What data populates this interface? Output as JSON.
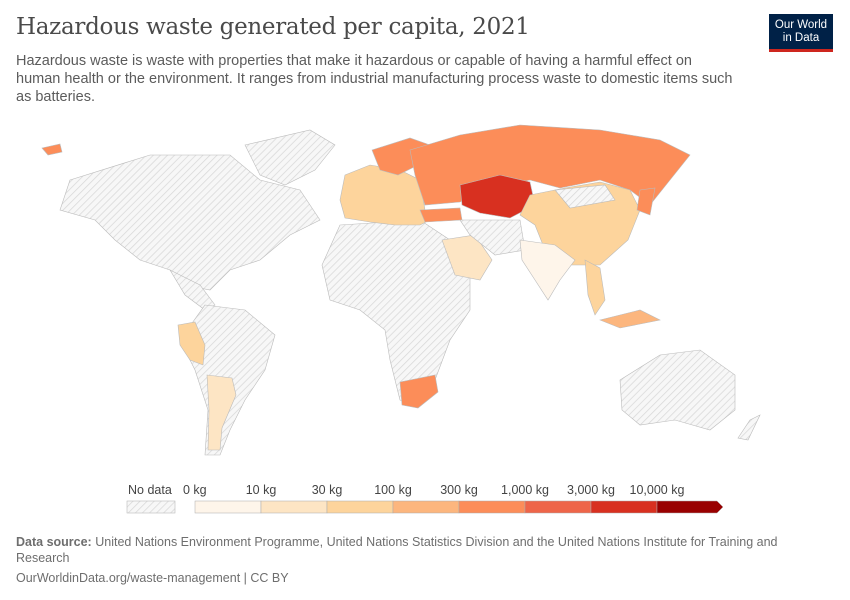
{
  "header": {
    "title": "Hazardous waste generated per capita, 2021",
    "subtitle": "Hazardous waste is waste with properties that make it hazardous or capable of having a harmful effect on human health or the environment. It ranges from industrial manufacturing process waste to domestic items such as batteries.",
    "logo_line1": "Our World",
    "logo_line2": "in Data"
  },
  "legend": {
    "no_data_label": "No data",
    "bins": [
      {
        "label": "0 kg",
        "color": "#fef5ea"
      },
      {
        "label": "10 kg",
        "color": "#fde5c4"
      },
      {
        "label": "30 kg",
        "color": "#fdd49c"
      },
      {
        "label": "100 kg",
        "color": "#fcb67e"
      },
      {
        "label": "300 kg",
        "color": "#fc8d59"
      },
      {
        "label": "1,000 kg",
        "color": "#ee6549"
      },
      {
        "label": "3,000 kg",
        "color": "#d83020"
      },
      {
        "label": "10,000 kg",
        "color": "#990000"
      }
    ]
  },
  "footer": {
    "source_label": "Data source:",
    "source_text": "United Nations Environment Programme, United Nations Statistics Division and the United Nations Institute for Training and Research",
    "url": "OurWorldinData.org/waste-management | CC BY"
  }
}
